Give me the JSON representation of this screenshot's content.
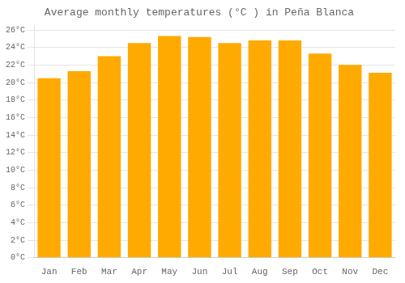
{
  "chart_data": {
    "type": "bar",
    "title": "Average monthly temperatures (°C ) in Peña Blanca",
    "categories": [
      "Jan",
      "Feb",
      "Mar",
      "Apr",
      "May",
      "Jun",
      "Jul",
      "Aug",
      "Sep",
      "Oct",
      "Nov",
      "Dec"
    ],
    "values": [
      20.5,
      21.3,
      23.0,
      24.5,
      25.3,
      25.2,
      24.5,
      24.8,
      24.8,
      23.3,
      22.0,
      21.1
    ],
    "color": "#FFAA00",
    "ylim": [
      0,
      26.5
    ],
    "yticks": [
      {
        "value": 0,
        "label": "0°C"
      },
      {
        "value": 2,
        "label": "2°C"
      },
      {
        "value": 4,
        "label": "4°C"
      },
      {
        "value": 6,
        "label": "6°C"
      },
      {
        "value": 8,
        "label": "8°C"
      },
      {
        "value": 10,
        "label": "10°C"
      },
      {
        "value": 12,
        "label": "12°C"
      },
      {
        "value": 14,
        "label": "14°C"
      },
      {
        "value": 16,
        "label": "16°C"
      },
      {
        "value": 18,
        "label": "18°C"
      },
      {
        "value": 20,
        "label": "20°C"
      },
      {
        "value": 22,
        "label": "22°C"
      },
      {
        "value": 24,
        "label": "24°C"
      },
      {
        "value": 26,
        "label": "26°C"
      }
    ],
    "grid": true
  }
}
